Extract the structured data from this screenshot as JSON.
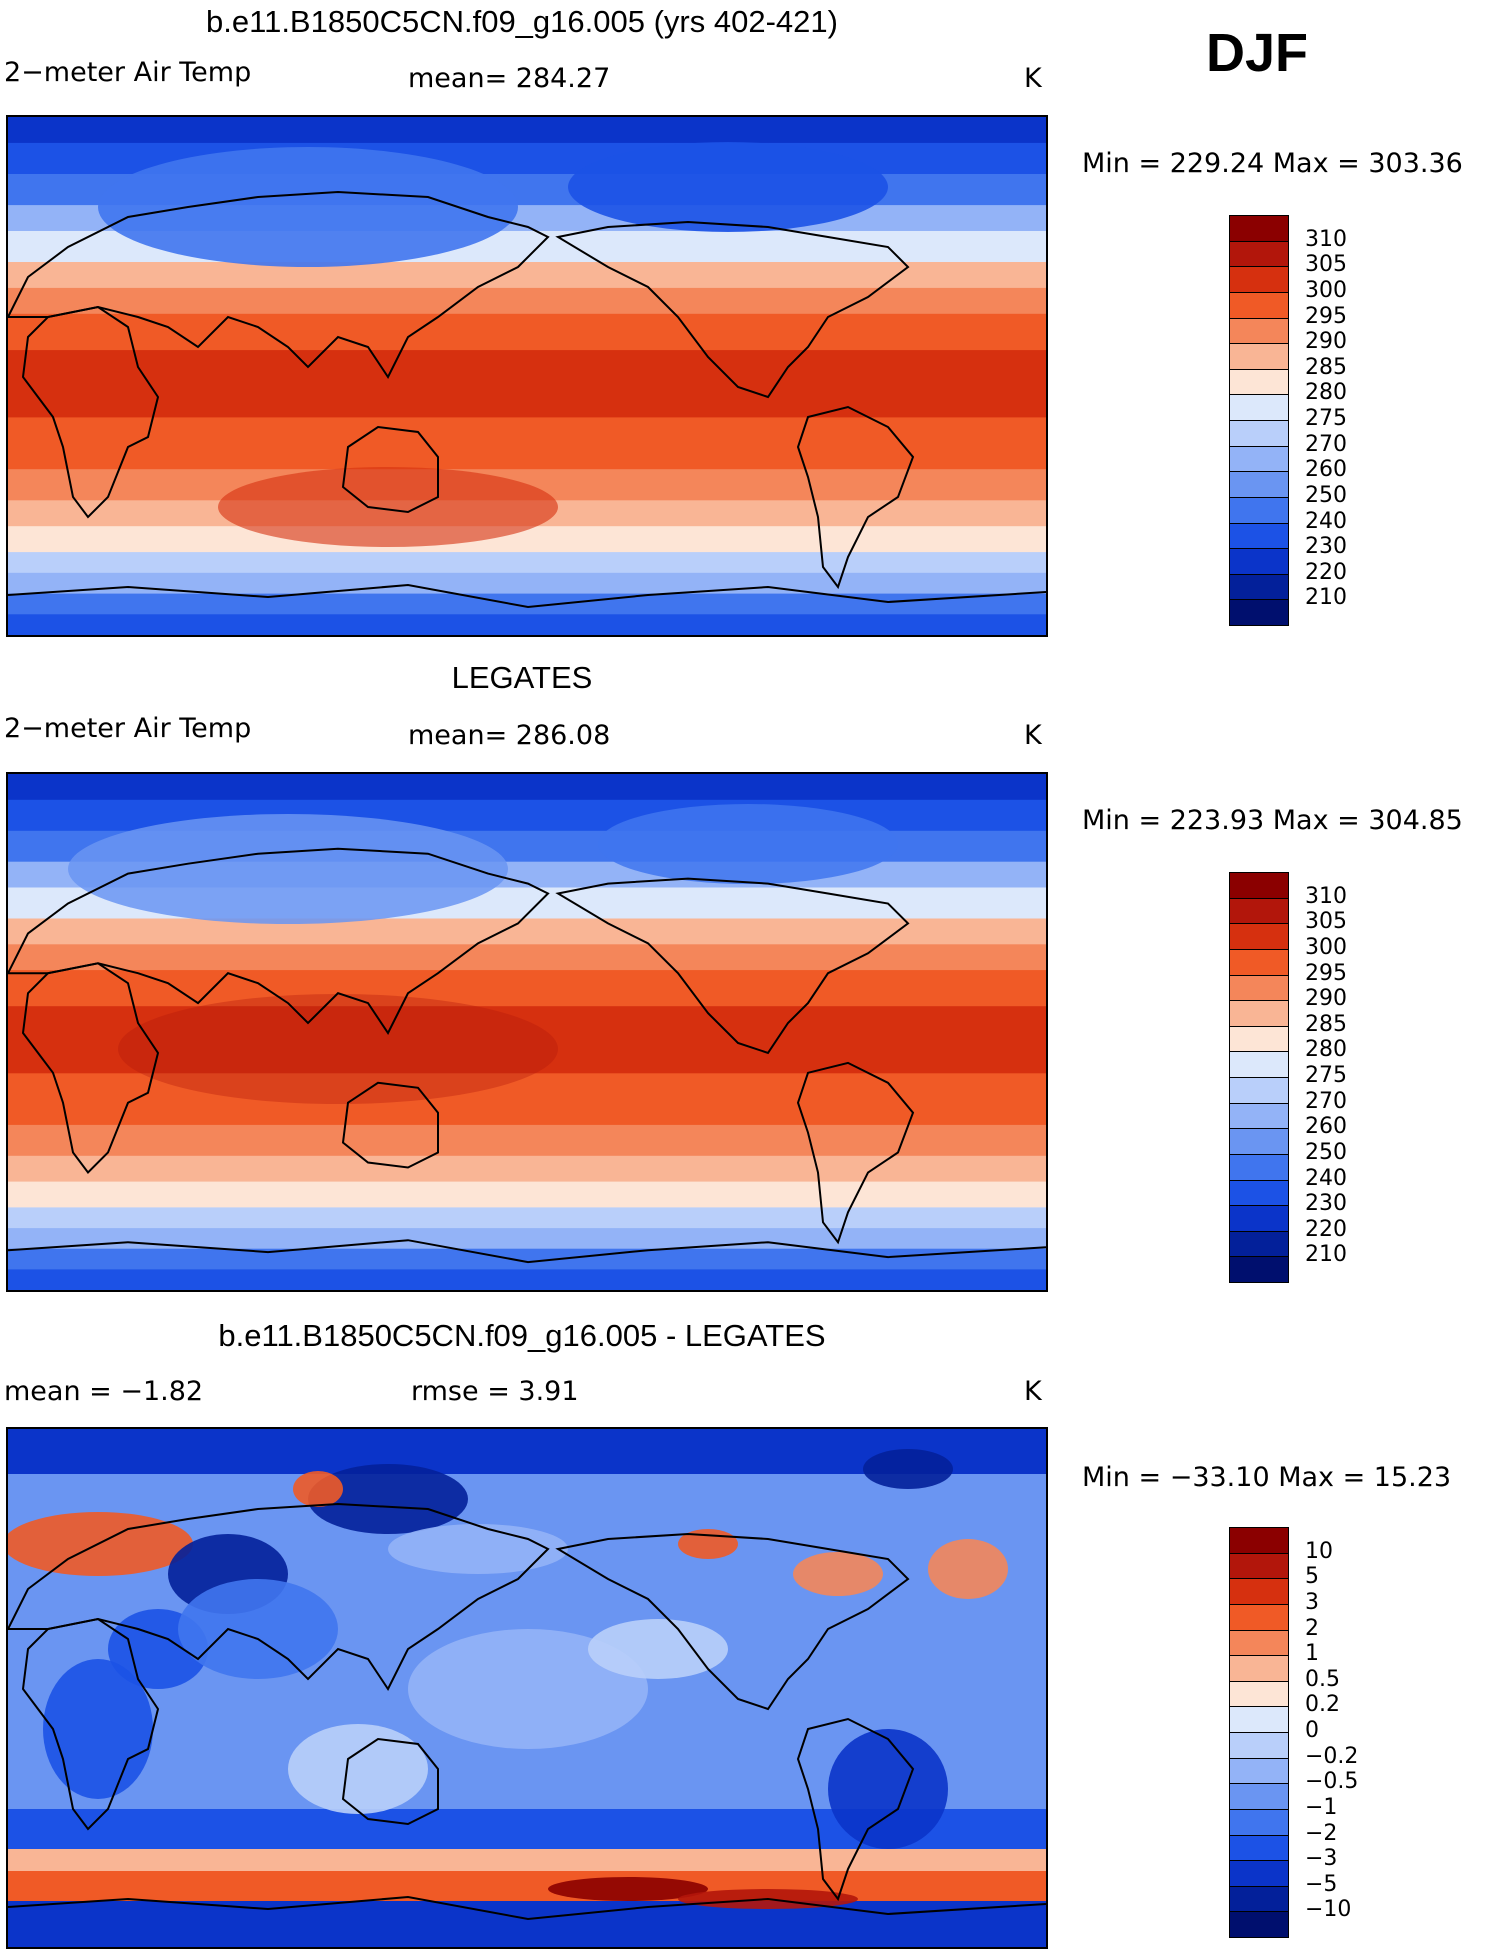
{
  "season": "DJF",
  "panels": [
    {
      "title": "b.e11.B1850C5CN.f09_g16.005 (yrs 402-421)",
      "left_label": "2−meter Air Temp",
      "center_label": "mean=  284.27",
      "units": "K",
      "minmax": "Min  =  229.24  Max  =  303.36"
    },
    {
      "title": "LEGATES",
      "left_label": "2−meter Air Temp",
      "center_label": "mean=  286.08",
      "units": "K",
      "minmax": "Min  =  223.93  Max  =  304.85"
    },
    {
      "title": "b.e11.B1850C5CN.f09_g16.005 - LEGATES",
      "left_label": "mean  =    −1.82",
      "center_label": "rmse  =      3.91",
      "units": "K",
      "minmax": "Min  =  −33.10  Max  =    15.23"
    }
  ],
  "chart_data": [
    {
      "type": "heatmap",
      "title": "b.e11.B1850C5CN.f09_g16.005 (yrs 402-421)",
      "field": "2-meter Air Temp",
      "units": "K",
      "season": "DJF",
      "mean": 284.27,
      "min": 229.24,
      "max": 303.36,
      "colorbar_levels": [
        "310",
        "305",
        "300",
        "295",
        "290",
        "285",
        "280",
        "275",
        "270",
        "260",
        "250",
        "240",
        "230",
        "220",
        "210"
      ],
      "colorbar_colors": [
        "#8b0000",
        "#b2160b",
        "#d6300f",
        "#f05a26",
        "#f4865a",
        "#f9b595",
        "#fde5d6",
        "#dce8fb",
        "#b9cffa",
        "#93b3f7",
        "#6a95f2",
        "#4075ee",
        "#1c52e6",
        "#0b34c9",
        "#03209a",
        "#000f6e"
      ]
    },
    {
      "type": "heatmap",
      "title": "LEGATES",
      "field": "2-meter Air Temp",
      "units": "K",
      "season": "DJF",
      "mean": 286.08,
      "min": 223.93,
      "max": 304.85,
      "colorbar_levels": [
        "310",
        "305",
        "300",
        "295",
        "290",
        "285",
        "280",
        "275",
        "270",
        "260",
        "250",
        "240",
        "230",
        "220",
        "210"
      ],
      "colorbar_colors": [
        "#8b0000",
        "#b2160b",
        "#d6300f",
        "#f05a26",
        "#f4865a",
        "#f9b595",
        "#fde5d6",
        "#dce8fb",
        "#b9cffa",
        "#93b3f7",
        "#6a95f2",
        "#4075ee",
        "#1c52e6",
        "#0b34c9",
        "#03209a",
        "#000f6e"
      ]
    },
    {
      "type": "heatmap",
      "title": "b.e11.B1850C5CN.f09_g16.005 - LEGATES",
      "field": "difference",
      "units": "K",
      "season": "DJF",
      "mean": -1.82,
      "rmse": 3.91,
      "min": -33.1,
      "max": 15.23,
      "colorbar_levels": [
        "10",
        "5",
        "3",
        "2",
        "1",
        "0.5",
        "0.2",
        "0",
        "−0.2",
        "−0.5",
        "−1",
        "−2",
        "−3",
        "−5",
        "−10"
      ],
      "colorbar_colors": [
        "#8b0000",
        "#b2160b",
        "#d6300f",
        "#f05a26",
        "#f4865a",
        "#f9b595",
        "#fde5d6",
        "#dce8fb",
        "#b9cffa",
        "#93b3f7",
        "#6a95f2",
        "#4075ee",
        "#1c52e6",
        "#0b34c9",
        "#03209a",
        "#000f6e"
      ]
    }
  ]
}
